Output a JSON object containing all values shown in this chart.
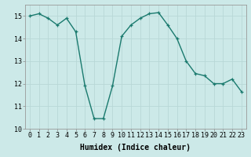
{
  "x": [
    0,
    1,
    2,
    3,
    4,
    5,
    6,
    7,
    8,
    9,
    10,
    11,
    12,
    13,
    14,
    15,
    16,
    17,
    18,
    19,
    20,
    21,
    22,
    23
  ],
  "y": [
    15.0,
    15.1,
    14.9,
    14.6,
    14.9,
    14.3,
    11.9,
    10.45,
    10.45,
    11.9,
    14.1,
    14.6,
    14.9,
    15.1,
    15.15,
    14.6,
    14.0,
    13.0,
    12.45,
    12.35,
    12.0,
    12.0,
    12.2,
    11.65
  ],
  "line_color": "#1a7a6e",
  "marker": "+",
  "marker_size": 3.5,
  "background_color": "#cce9e8",
  "grid_color": "#b8d8d7",
  "xlabel": "Humidex (Indice chaleur)",
  "xlabel_fontsize": 7,
  "tick_fontsize": 6,
  "ylim": [
    10,
    15.5
  ],
  "xlim": [
    -0.5,
    23.5
  ],
  "yticks": [
    10,
    11,
    12,
    13,
    14,
    15
  ],
  "xticks": [
    0,
    1,
    2,
    3,
    4,
    5,
    6,
    7,
    8,
    9,
    10,
    11,
    12,
    13,
    14,
    15,
    16,
    17,
    18,
    19,
    20,
    21,
    22,
    23
  ],
  "linewidth": 1.0
}
